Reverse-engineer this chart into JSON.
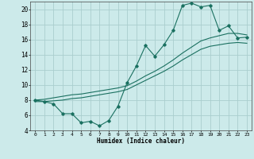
{
  "xlabel": "Humidex (Indice chaleur)",
  "bg_color": "#cceaea",
  "grid_color": "#aacece",
  "line_color": "#1a7060",
  "xlim": [
    -0.5,
    23.5
  ],
  "ylim": [
    4,
    21
  ],
  "yticks": [
    4,
    6,
    8,
    10,
    12,
    14,
    16,
    18,
    20
  ],
  "xticks": [
    0,
    1,
    2,
    3,
    4,
    5,
    6,
    7,
    8,
    9,
    10,
    11,
    12,
    13,
    14,
    15,
    16,
    17,
    18,
    19,
    20,
    21,
    22,
    23
  ],
  "series1_x": [
    0,
    1,
    2,
    3,
    4,
    5,
    6,
    7,
    8,
    9,
    10,
    11,
    12,
    13,
    14,
    15,
    16,
    17,
    18,
    19,
    20,
    21,
    22,
    23
  ],
  "series1_y": [
    8.0,
    7.8,
    7.5,
    6.2,
    6.2,
    5.0,
    5.2,
    4.6,
    5.3,
    7.2,
    10.3,
    12.5,
    15.2,
    13.8,
    15.3,
    17.2,
    20.5,
    20.8,
    20.3,
    20.5,
    17.2,
    17.8,
    16.2,
    16.3
  ],
  "series2_x": [
    0,
    1,
    2,
    3,
    4,
    5,
    6,
    7,
    8,
    9,
    10,
    11,
    12,
    13,
    14,
    15,
    16,
    17,
    18,
    19,
    20,
    21,
    22,
    23
  ],
  "series2_y": [
    8.0,
    8.1,
    8.3,
    8.5,
    8.7,
    8.8,
    9.0,
    9.2,
    9.4,
    9.6,
    9.9,
    10.5,
    11.2,
    11.8,
    12.5,
    13.3,
    14.2,
    15.0,
    15.8,
    16.2,
    16.5,
    16.8,
    16.8,
    16.6
  ],
  "series3_x": [
    0,
    1,
    2,
    3,
    4,
    5,
    6,
    7,
    8,
    9,
    10,
    11,
    12,
    13,
    14,
    15,
    16,
    17,
    18,
    19,
    20,
    21,
    22,
    23
  ],
  "series3_y": [
    7.8,
    7.8,
    7.9,
    8.0,
    8.2,
    8.3,
    8.5,
    8.7,
    8.9,
    9.1,
    9.4,
    10.0,
    10.6,
    11.2,
    11.8,
    12.5,
    13.3,
    14.0,
    14.7,
    15.1,
    15.3,
    15.5,
    15.6,
    15.5
  ]
}
